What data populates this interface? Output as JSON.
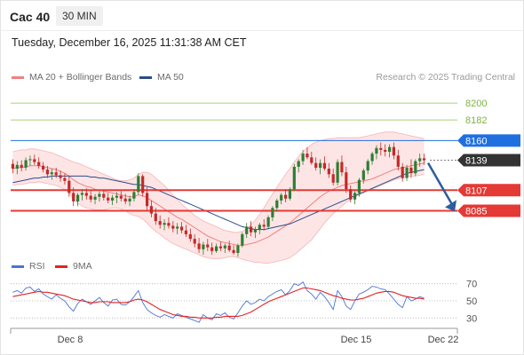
{
  "header": {
    "instrument": "Cac 40",
    "timeframe": "30 MIN",
    "datetime": "Tuesday, December 16, 2025 11:31:38 AM CET"
  },
  "legend": {
    "items": [
      {
        "label": "MA 20 + Bollinger Bands",
        "color": "#f08080"
      },
      {
        "label": "MA 50",
        "color": "#2b4c8c"
      }
    ],
    "credit": "Research © 2025 Trading Central"
  },
  "colors": {
    "bullish": "#2e7d32",
    "bearish": "#c62828",
    "resistance": "#e53935",
    "support": "#e53935",
    "pivot": "#1f6fe0",
    "target": "#8bc34a",
    "last": "#333333",
    "arrow": "#2e5c9e",
    "ma20": "#f08080",
    "ma50": "#2b4c8c",
    "band_fill": "#fde0e0",
    "rsi": "#4a74d4",
    "rsi_ma": "#e02424"
  },
  "chart_data": [
    {
      "type": "candlestick",
      "title": "",
      "x_tick_labels": [
        "Dec 8",
        "Dec 15",
        "Dec 22"
      ],
      "y_range": [
        8040,
        8220
      ],
      "candles": [
        [
          8135,
          8140,
          8125,
          8130
        ],
        [
          8130,
          8138,
          8124,
          8134
        ],
        [
          8134,
          8139,
          8127,
          8131
        ],
        [
          8131,
          8142,
          8128,
          8139
        ],
        [
          8139,
          8144,
          8133,
          8140
        ],
        [
          8140,
          8145,
          8134,
          8137
        ],
        [
          8137,
          8142,
          8130,
          8133
        ],
        [
          8133,
          8137,
          8126,
          8129
        ],
        [
          8129,
          8133,
          8120,
          8124
        ],
        [
          8124,
          8130,
          8118,
          8126
        ],
        [
          8126,
          8131,
          8120,
          8123
        ],
        [
          8123,
          8128,
          8116,
          8120
        ],
        [
          8120,
          8125,
          8113,
          8117
        ],
        [
          8117,
          8122,
          8100,
          8104
        ],
        [
          8104,
          8110,
          8090,
          8095
        ],
        [
          8095,
          8104,
          8090,
          8102
        ],
        [
          8102,
          8108,
          8096,
          8104
        ],
        [
          8104,
          8109,
          8097,
          8101
        ],
        [
          8101,
          8106,
          8094,
          8097
        ],
        [
          8097,
          8103,
          8092,
          8100
        ],
        [
          8100,
          8106,
          8095,
          8103
        ],
        [
          8103,
          8107,
          8096,
          8099
        ],
        [
          8099,
          8104,
          8093,
          8096
        ],
        [
          8096,
          8102,
          8091,
          8099
        ],
        [
          8099,
          8105,
          8093,
          8101
        ],
        [
          8101,
          8106,
          8095,
          8098
        ],
        [
          8098,
          8103,
          8092,
          8095
        ],
        [
          8095,
          8101,
          8090,
          8098
        ],
        [
          8098,
          8108,
          8095,
          8105
        ],
        [
          8105,
          8125,
          8102,
          8122
        ],
        [
          8122,
          8124,
          8100,
          8104
        ],
        [
          8104,
          8110,
          8086,
          8090
        ],
        [
          8090,
          8096,
          8078,
          8082
        ],
        [
          8082,
          8088,
          8070,
          8074
        ],
        [
          8074,
          8080,
          8066,
          8070
        ],
        [
          8070,
          8076,
          8064,
          8072
        ],
        [
          8072,
          8078,
          8066,
          8069
        ],
        [
          8069,
          8074,
          8062,
          8066
        ],
        [
          8066,
          8072,
          8060,
          8068
        ],
        [
          8068,
          8073,
          8061,
          8064
        ],
        [
          8064,
          8070,
          8057,
          8060
        ],
        [
          8060,
          8066,
          8052,
          8055
        ],
        [
          8055,
          8060,
          8046,
          8050
        ],
        [
          8050,
          8056,
          8040,
          8044
        ],
        [
          8044,
          8052,
          8038,
          8049
        ],
        [
          8049,
          8055,
          8042,
          8046
        ],
        [
          8046,
          8051,
          8038,
          8042
        ],
        [
          8042,
          8050,
          8040,
          8047
        ],
        [
          8047,
          8052,
          8042,
          8045
        ],
        [
          8045,
          8050,
          8040,
          8048
        ],
        [
          8048,
          8053,
          8041,
          8043
        ],
        [
          8043,
          8048,
          8038,
          8040
        ],
        [
          8040,
          8050,
          8036,
          8048
        ],
        [
          8048,
          8062,
          8046,
          8060
        ],
        [
          8060,
          8072,
          8056,
          8068
        ],
        [
          8068,
          8074,
          8058,
          8062
        ],
        [
          8062,
          8068,
          8056,
          8065
        ],
        [
          8065,
          8072,
          8060,
          8070
        ],
        [
          8070,
          8076,
          8064,
          8068
        ],
        [
          8068,
          8080,
          8066,
          8078
        ],
        [
          8078,
          8090,
          8074,
          8088
        ],
        [
          8088,
          8098,
          8084,
          8096
        ],
        [
          8096,
          8104,
          8092,
          8102
        ],
        [
          8102,
          8108,
          8094,
          8098
        ],
        [
          8098,
          8110,
          8096,
          8108
        ],
        [
          8108,
          8135,
          8106,
          8132
        ],
        [
          8132,
          8140,
          8126,
          8138
        ],
        [
          8138,
          8150,
          8134,
          8146
        ],
        [
          8146,
          8153,
          8140,
          8142
        ],
        [
          8142,
          8148,
          8134,
          8136
        ],
        [
          8136,
          8142,
          8128,
          8131
        ],
        [
          8131,
          8140,
          8124,
          8136
        ],
        [
          8136,
          8143,
          8128,
          8130
        ],
        [
          8130,
          8136,
          8120,
          8124
        ],
        [
          8124,
          8130,
          8112,
          8115
        ],
        [
          8115,
          8140,
          8112,
          8137
        ],
        [
          8137,
          8144,
          8122,
          8126
        ],
        [
          8126,
          8132,
          8104,
          8108
        ],
        [
          8108,
          8112,
          8094,
          8097
        ],
        [
          8097,
          8106,
          8092,
          8104
        ],
        [
          8104,
          8120,
          8100,
          8118
        ],
        [
          8118,
          8130,
          8114,
          8128
        ],
        [
          8128,
          8140,
          8124,
          8138
        ],
        [
          8138,
          8148,
          8134,
          8146
        ],
        [
          8146,
          8155,
          8140,
          8152
        ],
        [
          8152,
          8158,
          8144,
          8150
        ],
        [
          8150,
          8156,
          8143,
          8148
        ],
        [
          8148,
          8156,
          8142,
          8153
        ],
        [
          8153,
          8158,
          8140,
          8144
        ],
        [
          8144,
          8150,
          8128,
          8132
        ],
        [
          8132,
          8136,
          8116,
          8120
        ],
        [
          8120,
          8134,
          8117,
          8131
        ],
        [
          8131,
          8140,
          8120,
          8125
        ],
        [
          8125,
          8140,
          8122,
          8138
        ],
        [
          8138,
          8146,
          8132,
          8141
        ],
        [
          8141,
          8146,
          8134,
          8139
        ]
      ],
      "ma20": [
        8130,
        8131,
        8131,
        8132,
        8133,
        8133,
        8133,
        8132,
        8131,
        8130,
        8129,
        8127,
        8125,
        8122,
        8118,
        8115,
        8113,
        8111,
        8110,
        8108,
        8107,
        8106,
        8105,
        8104,
        8103,
        8102,
        8101,
        8100,
        8100,
        8102,
        8101,
        8099,
        8096,
        8093,
        8090,
        8087,
        8084,
        8081,
        8078,
        8076,
        8073,
        8070,
        8067,
        8064,
        8061,
        8058,
        8056,
        8054,
        8052,
        8051,
        8050,
        8049,
        8048,
        8048,
        8049,
        8050,
        8051,
        8053,
        8055,
        8057,
        8060,
        8063,
        8066,
        8069,
        8072,
        8076,
        8080,
        8084,
        8088,
        8092,
        8096,
        8100,
        8103,
        8106,
        8108,
        8110,
        8112,
        8113,
        8114,
        8115,
        8116,
        8117,
        8118,
        8119,
        8121,
        8123,
        8125,
        8127,
        8129,
        8130,
        8131,
        8132,
        8133,
        8134,
        8135,
        8136
      ],
      "bb_upper": [
        8148,
        8149,
        8150,
        8150,
        8151,
        8151,
        8150,
        8149,
        8148,
        8147,
        8145,
        8143,
        8141,
        8139,
        8137,
        8136,
        8134,
        8132,
        8130,
        8128,
        8126,
        8124,
        8122,
        8120,
        8118,
        8117,
        8117,
        8118,
        8120,
        8124,
        8126,
        8126,
        8124,
        8120,
        8116,
        8112,
        8107,
        8102,
        8097,
        8092,
        8088,
        8084,
        8080,
        8077,
        8074,
        8072,
        8070,
        8068,
        8066,
        8064,
        8063,
        8062,
        8062,
        8063,
        8066,
        8070,
        8075,
        8081,
        8088,
        8096,
        8103,
        8110,
        8117,
        8124,
        8130,
        8137,
        8143,
        8148,
        8152,
        8156,
        8158,
        8160,
        8161,
        8162,
        8162,
        8163,
        8163,
        8163,
        8163,
        8163,
        8163,
        8164,
        8165,
        8166,
        8167,
        8168,
        8169,
        8169,
        8169,
        8168,
        8167,
        8166,
        8165,
        8164,
        8163,
        8162
      ],
      "bb_lower": [
        8112,
        8113,
        8113,
        8114,
        8115,
        8115,
        8116,
        8115,
        8114,
        8113,
        8112,
        8110,
        8108,
        8104,
        8098,
        8093,
        8090,
        8088,
        8087,
        8086,
        8086,
        8086,
        8087,
        8088,
        8088,
        8087,
        8085,
        8082,
        8080,
        8079,
        8076,
        8072,
        8067,
        8063,
        8060,
        8056,
        8053,
        8050,
        8048,
        8046,
        8044,
        8042,
        8040,
        8038,
        8036,
        8035,
        8034,
        8034,
        8034,
        8035,
        8036,
        8036,
        8035,
        8033,
        8032,
        8031,
        8030,
        8030,
        8029,
        8029,
        8030,
        8031,
        8032,
        8033,
        8035,
        8038,
        8042,
        8046,
        8050,
        8054,
        8060,
        8066,
        8072,
        8077,
        8082,
        8086,
        8090,
        8094,
        8097,
        8100,
        8102,
        8104,
        8106,
        8108,
        8110,
        8112,
        8114,
        8116,
        8118,
        8119,
        8120,
        8121,
        8122,
        8122,
        8123,
        8124
      ],
      "ma50": [
        8115,
        8116,
        8117,
        8118,
        8119,
        8120,
        8120,
        8121,
        8121,
        8122,
        8122,
        8122,
        8122,
        8122,
        8122,
        8122,
        8122,
        8122,
        8121,
        8121,
        8120,
        8120,
        8119,
        8118,
        8117,
        8116,
        8115,
        8114,
        8113,
        8113,
        8112,
        8111,
        8110,
        8108,
        8106,
        8104,
        8102,
        8100,
        8098,
        8096,
        8094,
        8092,
        8090,
        8088,
        8086,
        8084,
        8082,
        8080,
        8078,
        8076,
        8074,
        8072,
        8070,
        8068,
        8067,
        8066,
        8065,
        8065,
        8065,
        8066,
        8067,
        8068,
        8069,
        8070,
        8071,
        8073,
        8075,
        8077,
        8079,
        8081,
        8083,
        8085,
        8087,
        8089,
        8091,
        8093,
        8095,
        8097,
        8099,
        8101,
        8103,
        8105,
        8107,
        8109,
        8111,
        8113,
        8115,
        8117,
        8119,
        8121,
        8123,
        8125,
        8126,
        8127,
        8128,
        8129
      ],
      "levels": [
        {
          "label": "8200",
          "value": 8200,
          "kind": "target"
        },
        {
          "label": "8182",
          "value": 8182,
          "kind": "target"
        },
        {
          "label": "8160",
          "value": 8160,
          "kind": "pivot"
        },
        {
          "label": "8139",
          "value": 8139,
          "kind": "last"
        },
        {
          "label": "8107",
          "value": 8107,
          "kind": "support"
        },
        {
          "label": "8085",
          "value": 8085,
          "kind": "support"
        }
      ],
      "forecast_arrow": {
        "from": 8136,
        "to": 8087,
        "direction": "down"
      }
    },
    {
      "type": "line",
      "title": "",
      "legend": [
        {
          "label": "RSI",
          "color": "#4a74d4"
        },
        {
          "label": "9MA",
          "color": "#e02424"
        }
      ],
      "y_ticks": [
        "70",
        "50",
        "30"
      ],
      "y_range": [
        20,
        80
      ],
      "series": [
        {
          "name": "RSI",
          "values": [
            60,
            62,
            59,
            65,
            66,
            61,
            64,
            58,
            55,
            52,
            57,
            53,
            50,
            43,
            38,
            47,
            52,
            49,
            46,
            50,
            54,
            48,
            44,
            51,
            52,
            46,
            45,
            49,
            55,
            62,
            48,
            40,
            36,
            33,
            31,
            34,
            32,
            30,
            35,
            33,
            31,
            29,
            27,
            25,
            34,
            30,
            28,
            35,
            33,
            36,
            31,
            29,
            36,
            44,
            50,
            46,
            48,
            52,
            50,
            55,
            58,
            61,
            63,
            57,
            62,
            70,
            68,
            72,
            62,
            58,
            52,
            60,
            55,
            48,
            40,
            62,
            55,
            44,
            40,
            50,
            58,
            60,
            63,
            67,
            66,
            64,
            63,
            58,
            52,
            46,
            42,
            55,
            50,
            52,
            55,
            53
          ]
        },
        {
          "name": "9MA",
          "values": [
            55,
            56,
            57,
            58,
            59,
            60,
            61,
            60,
            60,
            59,
            58,
            57,
            56,
            54,
            52,
            51,
            50,
            49,
            48,
            48,
            49,
            49,
            49,
            48,
            48,
            48,
            48,
            49,
            51,
            52,
            51,
            49,
            46,
            43,
            40,
            38,
            36,
            34,
            33,
            32,
            32,
            31,
            31,
            30,
            30,
            30,
            30,
            31,
            31,
            32,
            32,
            32,
            32,
            33,
            35,
            37,
            40,
            43,
            46,
            49,
            51,
            53,
            55,
            57,
            59,
            61,
            63,
            65,
            65,
            64,
            63,
            62,
            60,
            58,
            56,
            55,
            53,
            52,
            51,
            51,
            52,
            53,
            55,
            57,
            59,
            60,
            61,
            61,
            60,
            58,
            56,
            55,
            54,
            53,
            53,
            52
          ]
        }
      ]
    }
  ]
}
